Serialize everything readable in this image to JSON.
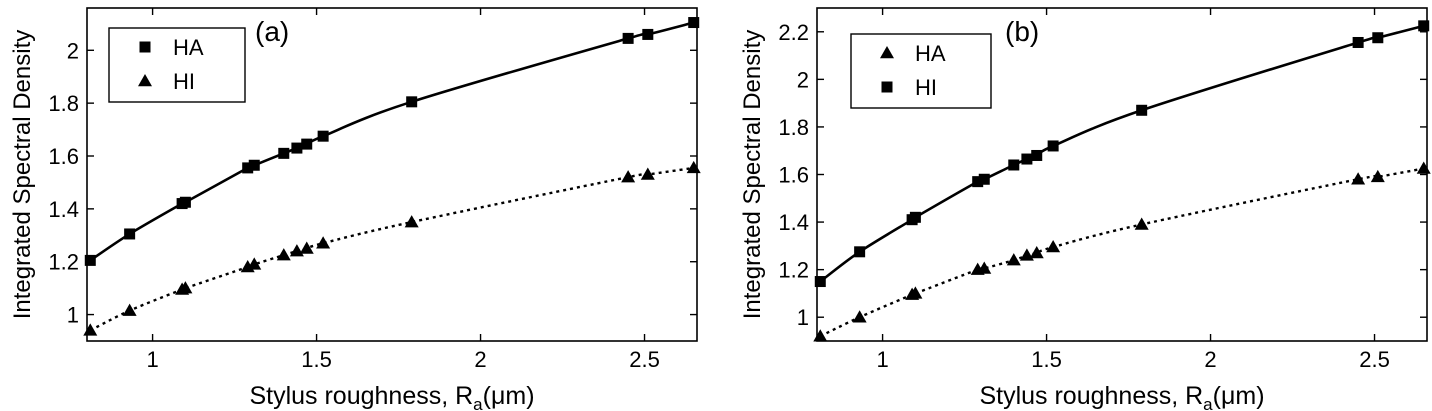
{
  "chart_data": [
    {
      "type": "line",
      "panel_label": "(a)",
      "xlabel": "Stylus roughness, R",
      "xlabel_sub": "a",
      "xlabel_unit": "(μm)",
      "ylabel": "Integrated Spectral Density",
      "xlim": [
        0.8,
        2.66
      ],
      "ylim": [
        0.9,
        2.16
      ],
      "xticks": [
        1,
        1.5,
        2,
        2.5
      ],
      "xtick_labels": [
        "1",
        "1.5",
        "2",
        "2.5"
      ],
      "yticks": [
        1,
        1.2,
        1.4,
        1.6,
        1.8,
        2
      ],
      "ytick_labels": [
        "1",
        "1.2",
        "1.4",
        "1.6",
        "1.8",
        "2"
      ],
      "legend_position": "top-left",
      "series": [
        {
          "name": "HA",
          "marker": "square",
          "line": "solid",
          "x": [
            0.81,
            0.93,
            1.09,
            1.1,
            1.29,
            1.31,
            1.4,
            1.44,
            1.47,
            1.52,
            1.79,
            2.45,
            2.51,
            2.65
          ],
          "y": [
            1.205,
            1.305,
            1.42,
            1.425,
            1.555,
            1.565,
            1.61,
            1.63,
            1.645,
            1.675,
            1.805,
            2.045,
            2.06,
            2.105
          ]
        },
        {
          "name": "HI",
          "marker": "triangle",
          "line": "dotted",
          "x": [
            0.81,
            0.93,
            1.09,
            1.1,
            1.29,
            1.31,
            1.4,
            1.44,
            1.47,
            1.52,
            1.79,
            2.45,
            2.51,
            2.65
          ],
          "y": [
            0.94,
            1.015,
            1.095,
            1.1,
            1.18,
            1.19,
            1.225,
            1.24,
            1.25,
            1.27,
            1.35,
            1.52,
            1.53,
            1.555
          ]
        }
      ]
    },
    {
      "type": "line",
      "panel_label": "(b)",
      "xlabel": "Stylus roughness, R",
      "xlabel_sub": "a",
      "xlabel_unit": "(μm)",
      "ylabel": "Integrated Spectral Density",
      "xlim": [
        0.8,
        2.66
      ],
      "ylim": [
        0.9,
        2.3
      ],
      "xticks": [
        1,
        1.5,
        2,
        2.5
      ],
      "xtick_labels": [
        "1",
        "1.5",
        "2",
        "2.5"
      ],
      "yticks": [
        1,
        1.2,
        1.4,
        1.6,
        1.8,
        2,
        2.2
      ],
      "ytick_labels": [
        "1",
        "1.2",
        "1.4",
        "1.6",
        "1.8",
        "2",
        "2.2"
      ],
      "legend_position": "top-left",
      "series": [
        {
          "name": "HA",
          "marker": "triangle",
          "line": "dotted",
          "x": [
            0.81,
            0.93,
            1.09,
            1.1,
            1.29,
            1.31,
            1.4,
            1.44,
            1.47,
            1.52,
            1.79,
            2.45,
            2.51,
            2.65
          ],
          "y": [
            0.92,
            1.0,
            1.095,
            1.1,
            1.2,
            1.205,
            1.24,
            1.26,
            1.27,
            1.295,
            1.39,
            1.58,
            1.59,
            1.625
          ]
        },
        {
          "name": "HI",
          "marker": "square",
          "line": "solid",
          "x": [
            0.81,
            0.93,
            1.09,
            1.1,
            1.29,
            1.31,
            1.4,
            1.44,
            1.47,
            1.52,
            1.79,
            2.45,
            2.51,
            2.65
          ],
          "y": [
            1.15,
            1.275,
            1.41,
            1.42,
            1.57,
            1.58,
            1.64,
            1.665,
            1.68,
            1.72,
            1.87,
            2.155,
            2.175,
            2.225
          ]
        }
      ]
    }
  ]
}
